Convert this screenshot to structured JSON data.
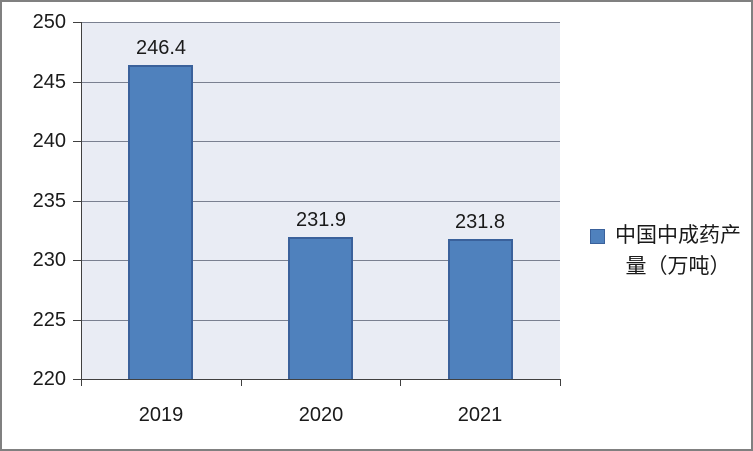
{
  "chart_data": {
    "type": "bar",
    "categories": [
      "2019",
      "2020",
      "2021"
    ],
    "values": [
      246.4,
      231.9,
      231.8
    ],
    "data_labels": [
      "246.4",
      "231.9",
      "231.8"
    ],
    "yticks": [
      220,
      225,
      230,
      235,
      240,
      245,
      250
    ],
    "ytick_labels": [
      "220",
      "225",
      "230",
      "235",
      "240",
      "245",
      "250"
    ],
    "ylim": [
      220,
      250
    ],
    "title": "",
    "xlabel": "",
    "ylabel": "",
    "grid": true,
    "legend": {
      "label": "中国中成药产量（万吨）",
      "position": "right"
    },
    "colors": {
      "bar_fill": "#4F81BD",
      "bar_border": "#3A619B",
      "plot_bg": "#E9ECF4",
      "gridline": "#7A8090",
      "axis": "#404040",
      "text": "#1A1A1A",
      "frame_border": "#808080",
      "background": "#FFFFFF"
    }
  }
}
